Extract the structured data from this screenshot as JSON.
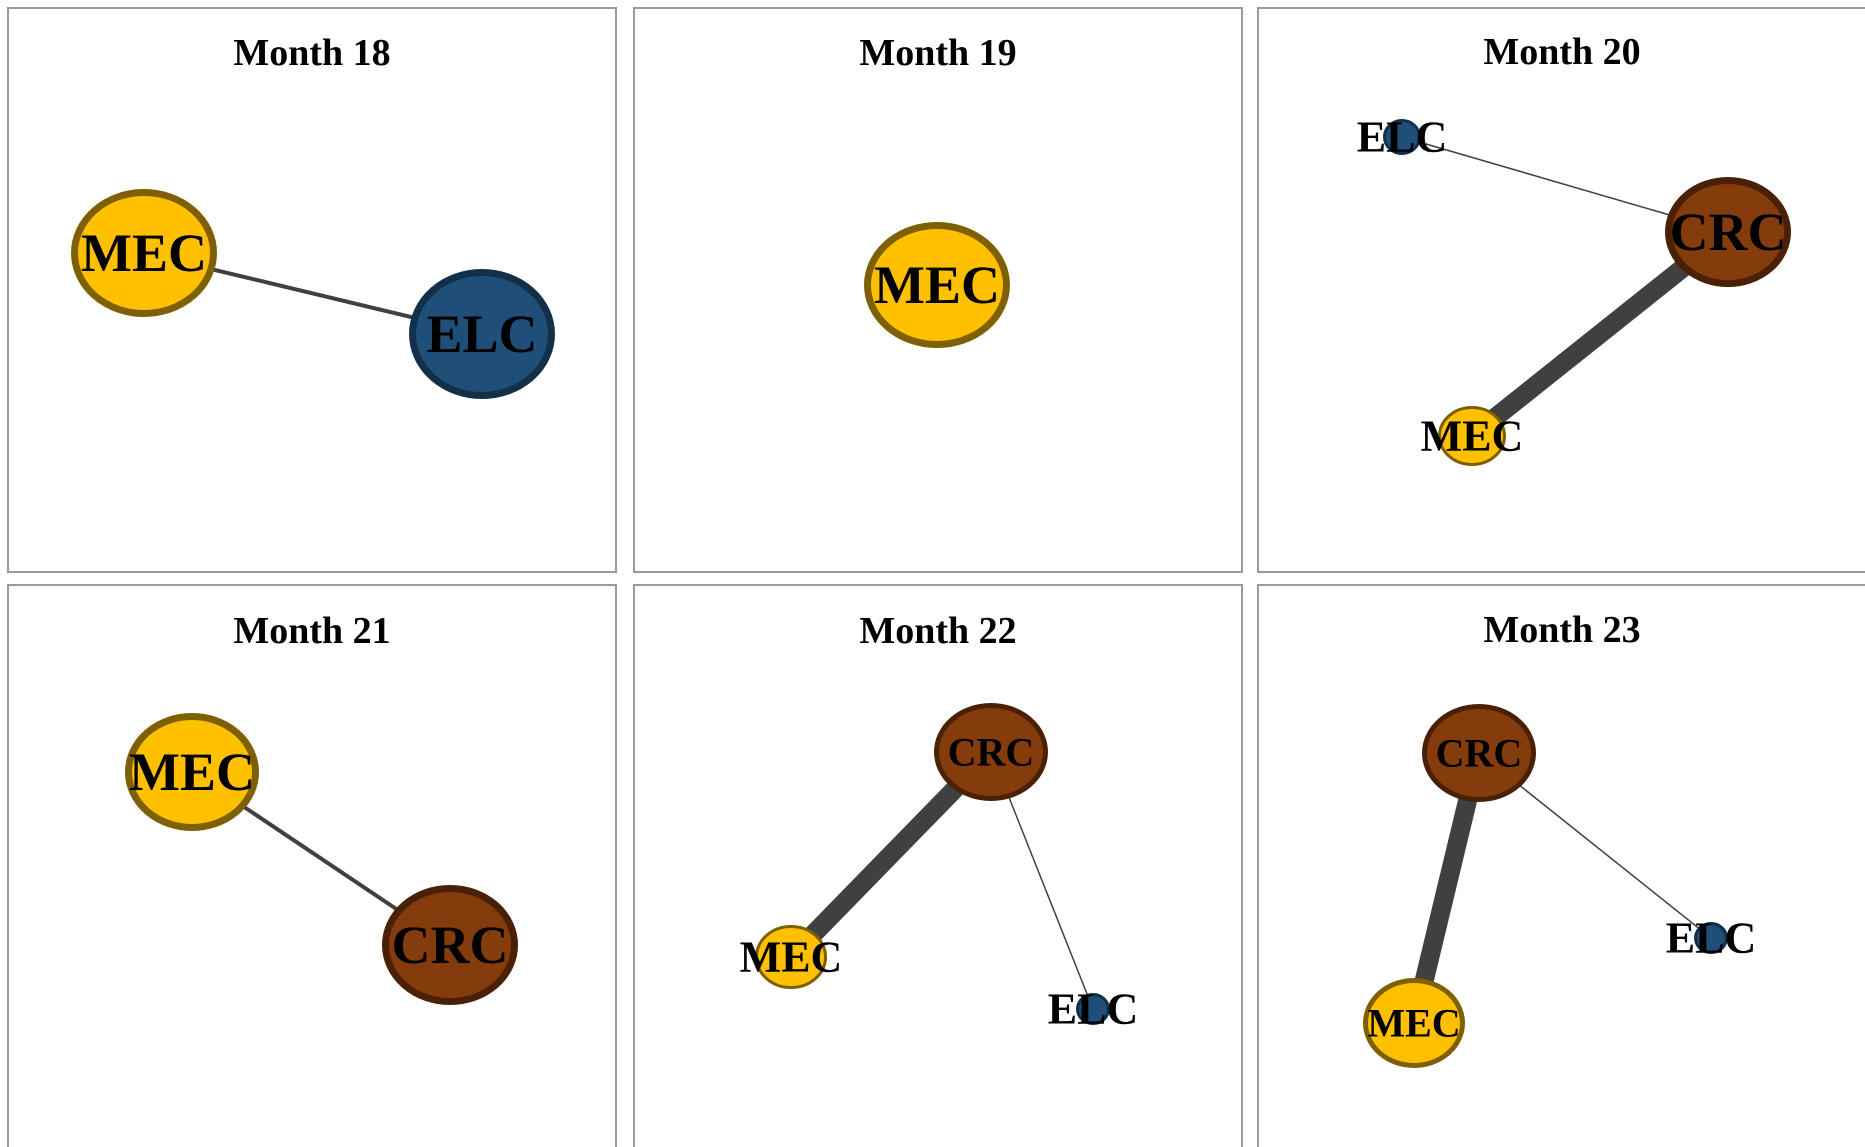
{
  "node_types": {
    "MEC": {
      "fill": "#ffc000",
      "stroke": "#7f6000"
    },
    "ELC": {
      "fill": "#1f4e79",
      "stroke": "#13304b"
    },
    "CRC": {
      "fill": "#843c0c",
      "stroke": "#4a2006"
    }
  },
  "edge_color": "#404040",
  "panels": [
    {
      "title": "Month 18",
      "nodes": [
        {
          "label": "MEC",
          "size": "large"
        },
        {
          "label": "ELC",
          "size": "large"
        }
      ],
      "edges": [
        {
          "source": "MEC",
          "target": "ELC",
          "weight": "thin"
        }
      ]
    },
    {
      "title": "Month 19",
      "nodes": [
        {
          "label": "MEC",
          "size": "large"
        }
      ],
      "edges": []
    },
    {
      "title": "Month 20",
      "nodes": [
        {
          "label": "ELC",
          "size": "small"
        },
        {
          "label": "CRC",
          "size": "large"
        },
        {
          "label": "MEC",
          "size": "small"
        }
      ],
      "edges": [
        {
          "source": "ELC",
          "target": "CRC",
          "weight": "hairline"
        },
        {
          "source": "CRC",
          "target": "MEC",
          "weight": "heavy"
        }
      ]
    },
    {
      "title": "Month 21",
      "nodes": [
        {
          "label": "MEC",
          "size": "large"
        },
        {
          "label": "CRC",
          "size": "large"
        }
      ],
      "edges": [
        {
          "source": "MEC",
          "target": "CRC",
          "weight": "thin"
        }
      ]
    },
    {
      "title": "Month 22",
      "nodes": [
        {
          "label": "CRC",
          "size": "medium"
        },
        {
          "label": "MEC",
          "size": "small"
        },
        {
          "label": "ELC",
          "size": "small"
        }
      ],
      "edges": [
        {
          "source": "CRC",
          "target": "MEC",
          "weight": "heavy"
        },
        {
          "source": "CRC",
          "target": "ELC",
          "weight": "hairline"
        }
      ]
    },
    {
      "title": "Month 23",
      "nodes": [
        {
          "label": "CRC",
          "size": "medium"
        },
        {
          "label": "MEC",
          "size": "medium"
        },
        {
          "label": "ELC",
          "size": "small"
        }
      ],
      "edges": [
        {
          "source": "CRC",
          "target": "MEC",
          "weight": "heavy"
        },
        {
          "source": "CRC",
          "target": "ELC",
          "weight": "hairline"
        }
      ]
    }
  ]
}
